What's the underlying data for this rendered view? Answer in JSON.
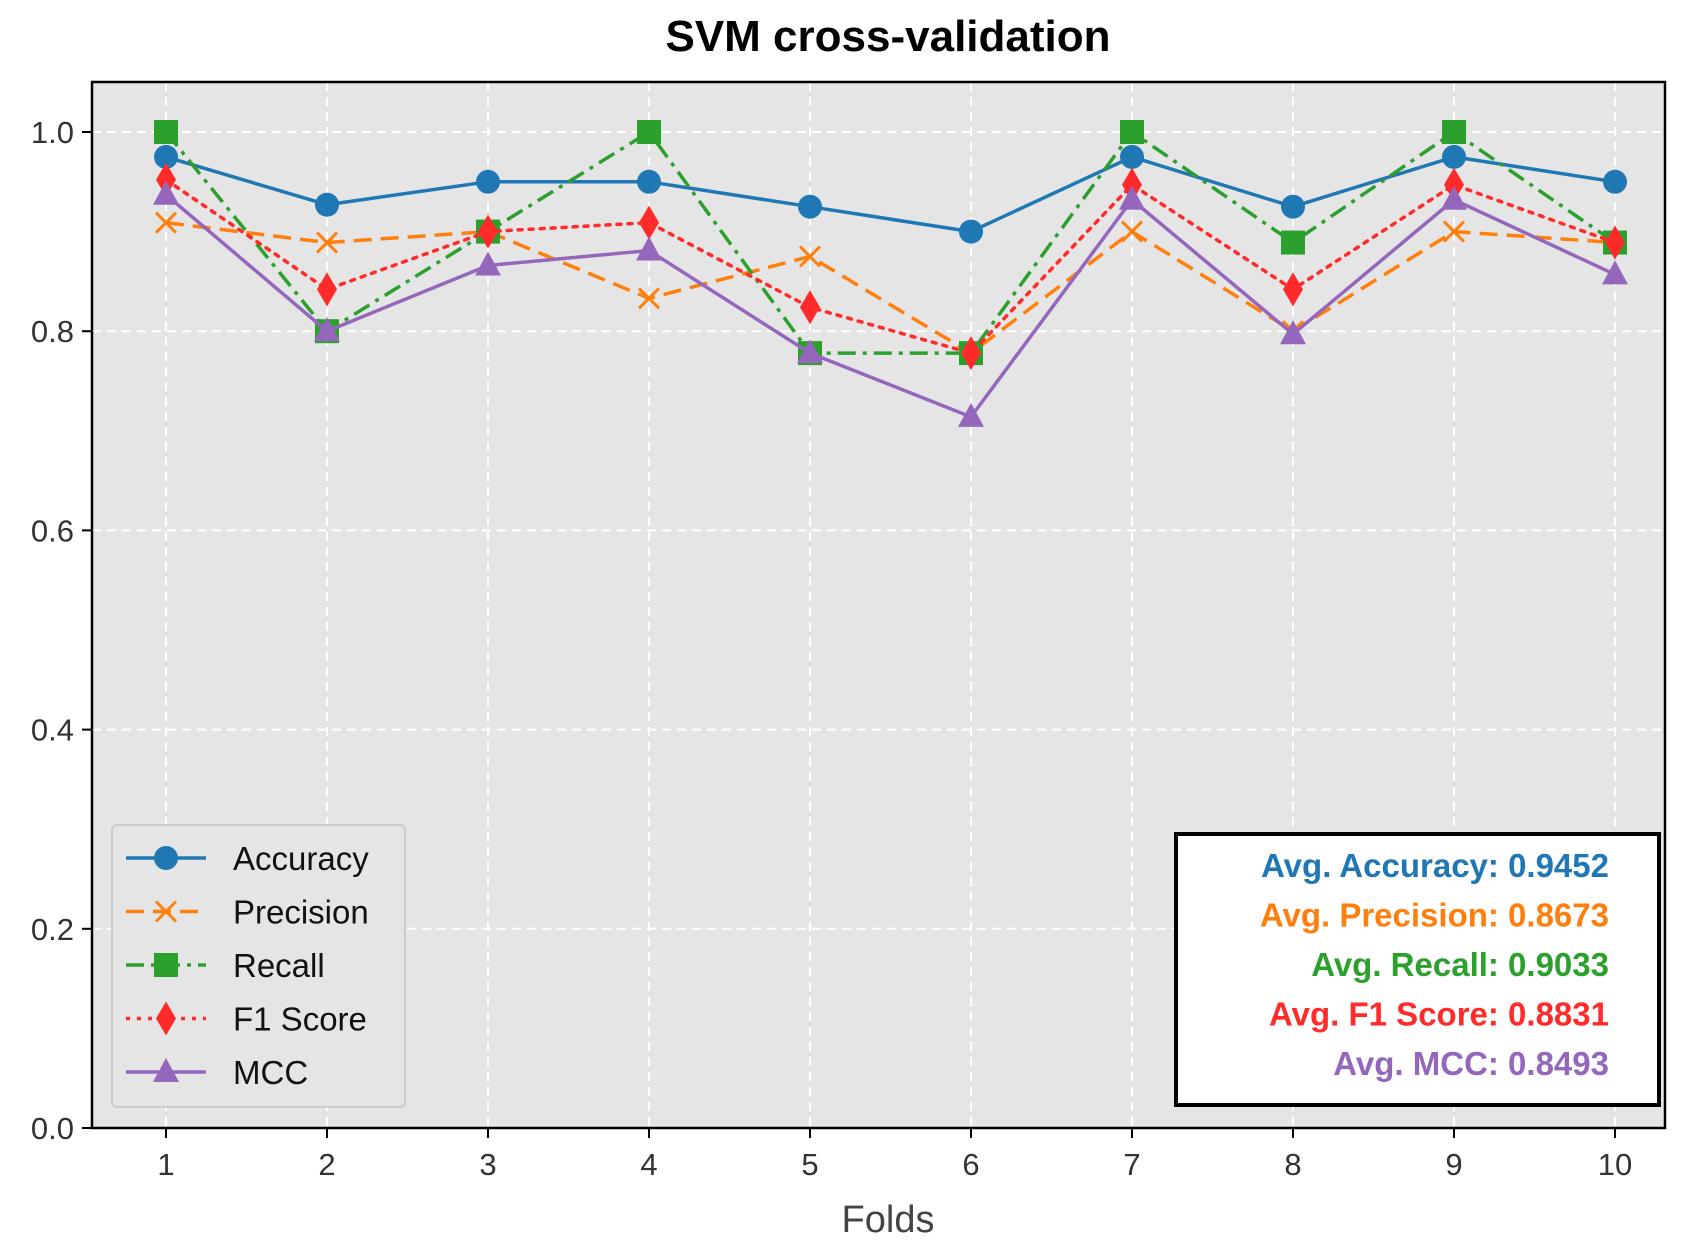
{
  "chart_data": {
    "type": "line",
    "title": "SVM cross-validation",
    "xlabel": "Folds",
    "ylabel": "",
    "x": [
      1,
      2,
      3,
      4,
      5,
      6,
      7,
      8,
      9,
      10
    ],
    "x_tick_labels": [
      "1",
      "2",
      "3",
      "4",
      "5",
      "6",
      "7",
      "8",
      "9",
      "10"
    ],
    "ylim": [
      0.0,
      1.05
    ],
    "y_ticks": [
      0.0,
      0.2,
      0.4,
      0.6,
      0.8,
      1.0
    ],
    "y_tick_labels": [
      "0.0",
      "0.2",
      "0.4",
      "0.6",
      "0.8",
      "1.0"
    ],
    "grid": true,
    "legend_position": "lower-left",
    "series": [
      {
        "name": "Accuracy",
        "color": "#1f77b4",
        "dash": "solid",
        "marker": "circle",
        "values": [
          0.975,
          0.927,
          0.95,
          0.95,
          0.925,
          0.9,
          0.975,
          0.925,
          0.975,
          0.95
        ]
      },
      {
        "name": "Precision",
        "color": "#ff7f0e",
        "dash": "dashed",
        "marker": "x",
        "values": [
          0.909,
          0.889,
          0.9,
          0.833,
          0.875,
          0.778,
          0.9,
          0.8,
          0.9,
          0.889
        ]
      },
      {
        "name": "Recall",
        "color": "#2ca02c",
        "dash": "dashdot",
        "marker": "square",
        "values": [
          1.0,
          0.8,
          0.9,
          1.0,
          0.778,
          0.778,
          1.0,
          0.889,
          1.0,
          0.889
        ]
      },
      {
        "name": "F1 Score",
        "color": "#ff2a2a",
        "dash": "dotted",
        "marker": "diamond",
        "values": [
          0.952,
          0.842,
          0.9,
          0.909,
          0.824,
          0.778,
          0.947,
          0.842,
          0.947,
          0.889
        ]
      },
      {
        "name": "MCC",
        "color": "#9467bd",
        "dash": "solid",
        "marker": "triangle",
        "values": [
          0.937,
          0.8,
          0.866,
          0.881,
          0.778,
          0.714,
          0.932,
          0.797,
          0.932,
          0.857
        ]
      }
    ],
    "annotations": [
      {
        "text": "Avg. Accuracy: 0.9452",
        "color": "#1f77b4"
      },
      {
        "text": "Avg. Precision: 0.8673",
        "color": "#ff7f0e"
      },
      {
        "text": "Avg. Recall: 0.9033",
        "color": "#2ca02c"
      },
      {
        "text": "Avg. F1 Score: 0.8831",
        "color": "#ff2a2a"
      },
      {
        "text": "Avg. MCC: 0.8493",
        "color": "#9467bd"
      }
    ]
  }
}
